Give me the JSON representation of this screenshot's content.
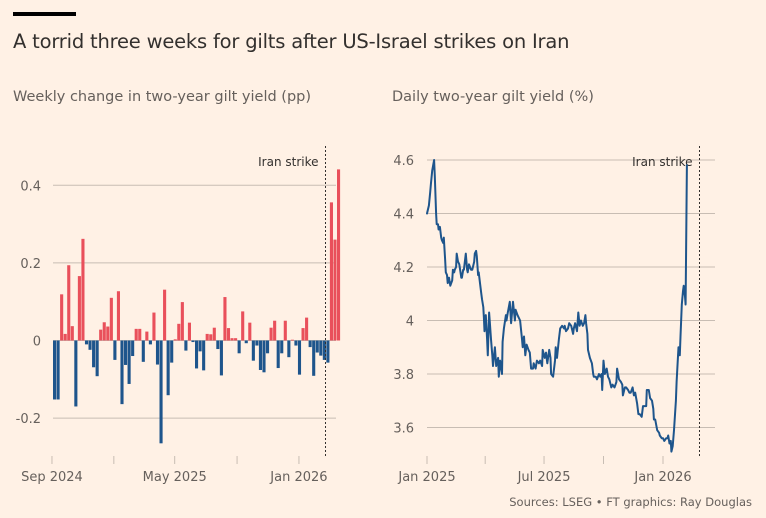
{
  "title": "A torrid three weeks for gilts after US-Israel strikes on Iran",
  "source": "Sources: LSEG • FT graphics: Ray Douglas",
  "colors": {
    "background": "#fff1e5",
    "positive": "#e9505b",
    "negative": "#1e558c",
    "line": "#1e558c",
    "grid": "#c8bdb3",
    "text": "#33302e",
    "muted": "#66605c"
  },
  "chart_data": [
    {
      "type": "bar",
      "title": "Weekly change in two-year gilt yield (pp)",
      "xlabel": "",
      "ylabel": "",
      "ylim": [
        -0.3,
        0.46
      ],
      "yticks": [
        0.4,
        0.2,
        0,
        -0.2
      ],
      "ytick_labels": [
        "0.4",
        "0.2",
        "0",
        "-0.2"
      ],
      "grid": true,
      "x_start": "2024-09-06",
      "x_frequency": "weekly",
      "xticks": [
        "2024-09-01",
        "2025-01-01",
        "2025-05-01",
        "2025-09-01",
        "2026-01-01"
      ],
      "xtick_labels": [
        "Sep 2024",
        "",
        "May 2025",
        "",
        "Jan 2026"
      ],
      "annotation": {
        "label": "Iran strike",
        "date": "2026-02-28"
      },
      "values": [
        -0.152,
        -0.152,
        0.119,
        0.017,
        0.194,
        0.037,
        -0.17,
        0.166,
        0.262,
        -0.01,
        -0.024,
        -0.069,
        -0.092,
        0.028,
        0.047,
        0.036,
        0.11,
        -0.05,
        0.127,
        -0.164,
        -0.063,
        -0.112,
        -0.04,
        0.03,
        0.03,
        -0.055,
        0.023,
        -0.01,
        0.072,
        -0.062,
        -0.265,
        0.131,
        -0.141,
        -0.057,
        0.003,
        0.043,
        0.099,
        -0.026,
        0.046,
        -0.004,
        -0.072,
        -0.028,
        -0.077,
        0.017,
        0.016,
        0.033,
        -0.022,
        -0.09,
        0.112,
        0.032,
        0.006,
        0.006,
        -0.033,
        0.075,
        -0.007,
        0.046,
        -0.052,
        -0.013,
        -0.076,
        -0.082,
        -0.033,
        0.033,
        0.051,
        -0.071,
        -0.033,
        0.051,
        -0.043,
        0.002,
        -0.013,
        -0.088,
        0.032,
        0.059,
        -0.017,
        -0.091,
        -0.031,
        -0.039,
        -0.05,
        -0.057,
        0.356,
        0.26,
        0.441
      ]
    },
    {
      "type": "line",
      "title": "Daily two-year gilt yield (%)",
      "xlabel": "",
      "ylabel": "",
      "ylim": [
        3.5,
        4.62
      ],
      "yticks": [
        4.6,
        4.4,
        4.2,
        4.0,
        3.8,
        3.6
      ],
      "ytick_labels": [
        "4.6",
        "4.4",
        "4.2",
        "4",
        "3.8",
        "3.6"
      ],
      "grid": true,
      "xticks": [
        "2025-01-01",
        "2025-04-01",
        "2025-07-01",
        "2025-10-01",
        "2026-01-01"
      ],
      "xtick_labels": [
        "Jan 2025",
        "",
        "Jul 2025",
        "",
        "Jan 2026"
      ],
      "annotation": {
        "label": "Iran strike",
        "date": "2026-02-28"
      },
      "x_start": "2025-01-01",
      "x_unit": "days since x_start",
      "series": [
        {
          "name": "Two-year gilt yield",
          "points": [
            [
              0,
              4.4
            ],
            [
              3,
              4.43
            ],
            [
              5,
              4.48
            ],
            [
              6,
              4.51
            ],
            [
              8,
              4.56
            ],
            [
              11,
              4.6
            ],
            [
              12,
              4.54
            ],
            [
              14,
              4.4
            ],
            [
              15,
              4.36
            ],
            [
              17,
              4.36
            ],
            [
              18,
              4.34
            ],
            [
              20,
              4.35
            ],
            [
              22,
              4.31
            ],
            [
              23,
              4.3
            ],
            [
              25,
              4.29
            ],
            [
              26,
              4.31
            ],
            [
              28,
              4.23
            ],
            [
              29,
              4.18
            ],
            [
              31,
              4.17
            ],
            [
              32,
              4.14
            ],
            [
              34,
              4.16
            ],
            [
              36,
              4.13
            ],
            [
              39,
              4.15
            ],
            [
              40,
              4.19
            ],
            [
              42,
              4.18
            ],
            [
              43,
              4.19
            ],
            [
              45,
              4.2
            ],
            [
              46,
              4.25
            ],
            [
              48,
              4.22
            ],
            [
              50,
              4.21
            ],
            [
              53,
              4.16
            ],
            [
              54,
              4.16
            ],
            [
              56,
              4.19
            ],
            [
              57,
              4.19
            ],
            [
              60,
              4.25
            ],
            [
              62,
              4.19
            ],
            [
              63,
              4.18
            ],
            [
              65,
              4.21
            ],
            [
              68,
              4.19
            ],
            [
              70,
              4.19
            ],
            [
              73,
              4.22
            ],
            [
              74,
              4.25
            ],
            [
              76,
              4.26
            ],
            [
              77,
              4.24
            ],
            [
              79,
              4.17
            ],
            [
              80,
              4.18
            ],
            [
              82,
              4.14
            ],
            [
              84,
              4.1
            ],
            [
              85,
              4.08
            ],
            [
              87,
              4.05
            ],
            [
              88,
              4.01
            ],
            [
              89,
              3.96
            ],
            [
              91,
              4.02
            ],
            [
              93,
              3.93
            ],
            [
              94,
              3.87
            ],
            [
              96,
              4.03
            ],
            [
              97,
              4.0
            ],
            [
              99,
              3.93
            ],
            [
              101,
              3.87
            ],
            [
              102,
              3.83
            ],
            [
              105,
              3.9
            ],
            [
              107,
              3.83
            ],
            [
              110,
              3.86
            ],
            [
              111,
              3.79
            ],
            [
              113,
              3.85
            ],
            [
              116,
              3.8
            ],
            [
              117,
              3.92
            ],
            [
              119,
              3.97
            ],
            [
              122,
              4.02
            ],
            [
              123,
              4.0
            ],
            [
              125,
              4.03
            ],
            [
              128,
              4.07
            ],
            [
              130,
              3.99
            ],
            [
              133,
              4.07
            ],
            [
              136,
              4.0
            ],
            [
              137,
              4.04
            ],
            [
              140,
              4.02
            ],
            [
              142,
              4.01
            ],
            [
              144,
              4.0
            ],
            [
              147,
              3.93
            ],
            [
              148,
              3.9
            ],
            [
              150,
              3.94
            ],
            [
              152,
              3.87
            ],
            [
              154,
              3.91
            ],
            [
              157,
              3.89
            ],
            [
              159,
              3.88
            ],
            [
              161,
              3.82
            ],
            [
              164,
              3.82
            ],
            [
              165,
              3.84
            ],
            [
              168,
              3.82
            ],
            [
              170,
              3.85
            ],
            [
              173,
              3.84
            ],
            [
              175,
              3.85
            ],
            [
              178,
              3.83
            ],
            [
              179,
              3.89
            ],
            [
              182,
              3.86
            ],
            [
              184,
              3.88
            ],
            [
              186,
              3.84
            ],
            [
              189,
              3.89
            ],
            [
              191,
              3.86
            ],
            [
              192,
              3.8
            ],
            [
              195,
              3.79
            ],
            [
              198,
              3.85
            ],
            [
              199,
              3.9
            ],
            [
              201,
              3.86
            ],
            [
              204,
              3.93
            ],
            [
              206,
              3.97
            ],
            [
              209,
              3.98
            ],
            [
              212,
              3.97
            ],
            [
              213,
              3.98
            ],
            [
              215,
              3.96
            ],
            [
              218,
              3.97
            ],
            [
              220,
              3.99
            ],
            [
              223,
              3.98
            ],
            [
              226,
              3.95
            ],
            [
              227,
              3.97
            ],
            [
              229,
              3.99
            ],
            [
              232,
              3.96
            ],
            [
              234,
              4.03
            ],
            [
              236,
              3.98
            ],
            [
              238,
              4.0
            ],
            [
              241,
              3.98
            ],
            [
              243,
              3.99
            ],
            [
              245,
              4.02
            ],
            [
              246,
              3.99
            ],
            [
              248,
              3.95
            ],
            [
              249,
              3.89
            ],
            [
              252,
              3.86
            ],
            [
              255,
              3.84
            ],
            [
              257,
              3.8
            ],
            [
              258,
              3.79
            ],
            [
              261,
              3.79
            ],
            [
              263,
              3.78
            ],
            [
              266,
              3.8
            ],
            [
              268,
              3.79
            ],
            [
              270,
              3.8
            ],
            [
              271,
              3.74
            ],
            [
              273,
              3.85
            ],
            [
              275,
              3.8
            ],
            [
              278,
              3.82
            ],
            [
              280,
              3.79
            ],
            [
              282,
              3.78
            ],
            [
              285,
              3.75
            ],
            [
              287,
              3.76
            ],
            [
              290,
              3.75
            ],
            [
              293,
              3.77
            ],
            [
              294,
              3.82
            ],
            [
              297,
              3.78
            ],
            [
              300,
              3.77
            ],
            [
              302,
              3.76
            ],
            [
              303,
              3.72
            ],
            [
              306,
              3.75
            ],
            [
              308,
              3.75
            ],
            [
              311,
              3.74
            ],
            [
              313,
              3.73
            ],
            [
              315,
              3.73
            ],
            [
              318,
              3.75
            ],
            [
              320,
              3.72
            ],
            [
              322,
              3.73
            ],
            [
              325,
              3.69
            ],
            [
              327,
              3.65
            ],
            [
              329,
              3.65
            ],
            [
              332,
              3.64
            ],
            [
              334,
              3.68
            ],
            [
              337,
              3.68
            ],
            [
              339,
              3.68
            ],
            [
              340,
              3.74
            ],
            [
              343,
              3.74
            ],
            [
              345,
              3.71
            ],
            [
              348,
              3.7
            ],
            [
              350,
              3.67
            ],
            [
              351,
              3.63
            ],
            [
              353,
              3.63
            ],
            [
              356,
              3.59
            ],
            [
              359,
              3.58
            ],
            [
              360,
              3.57
            ],
            [
              363,
              3.56
            ],
            [
              365,
              3.56
            ],
            [
              367,
              3.55
            ],
            [
              370,
              3.56
            ],
            [
              372,
              3.56
            ],
            [
              373,
              3.57
            ],
            [
              375,
              3.54
            ],
            [
              377,
              3.55
            ],
            [
              378,
              3.51
            ],
            [
              380,
              3.53
            ],
            [
              382,
              3.59
            ],
            [
              385,
              3.7
            ],
            [
              386,
              3.77
            ],
            [
              388,
              3.86
            ],
            [
              389,
              3.9
            ],
            [
              391,
              3.87
            ],
            [
              392,
              3.94
            ],
            [
              394,
              4.06
            ],
            [
              396,
              4.11
            ],
            [
              397,
              4.13
            ],
            [
              399,
              4.09
            ],
            [
              400,
              4.06
            ],
            [
              401,
              4.34
            ],
            [
              402,
              4.58
            ]
          ]
        }
      ]
    }
  ]
}
